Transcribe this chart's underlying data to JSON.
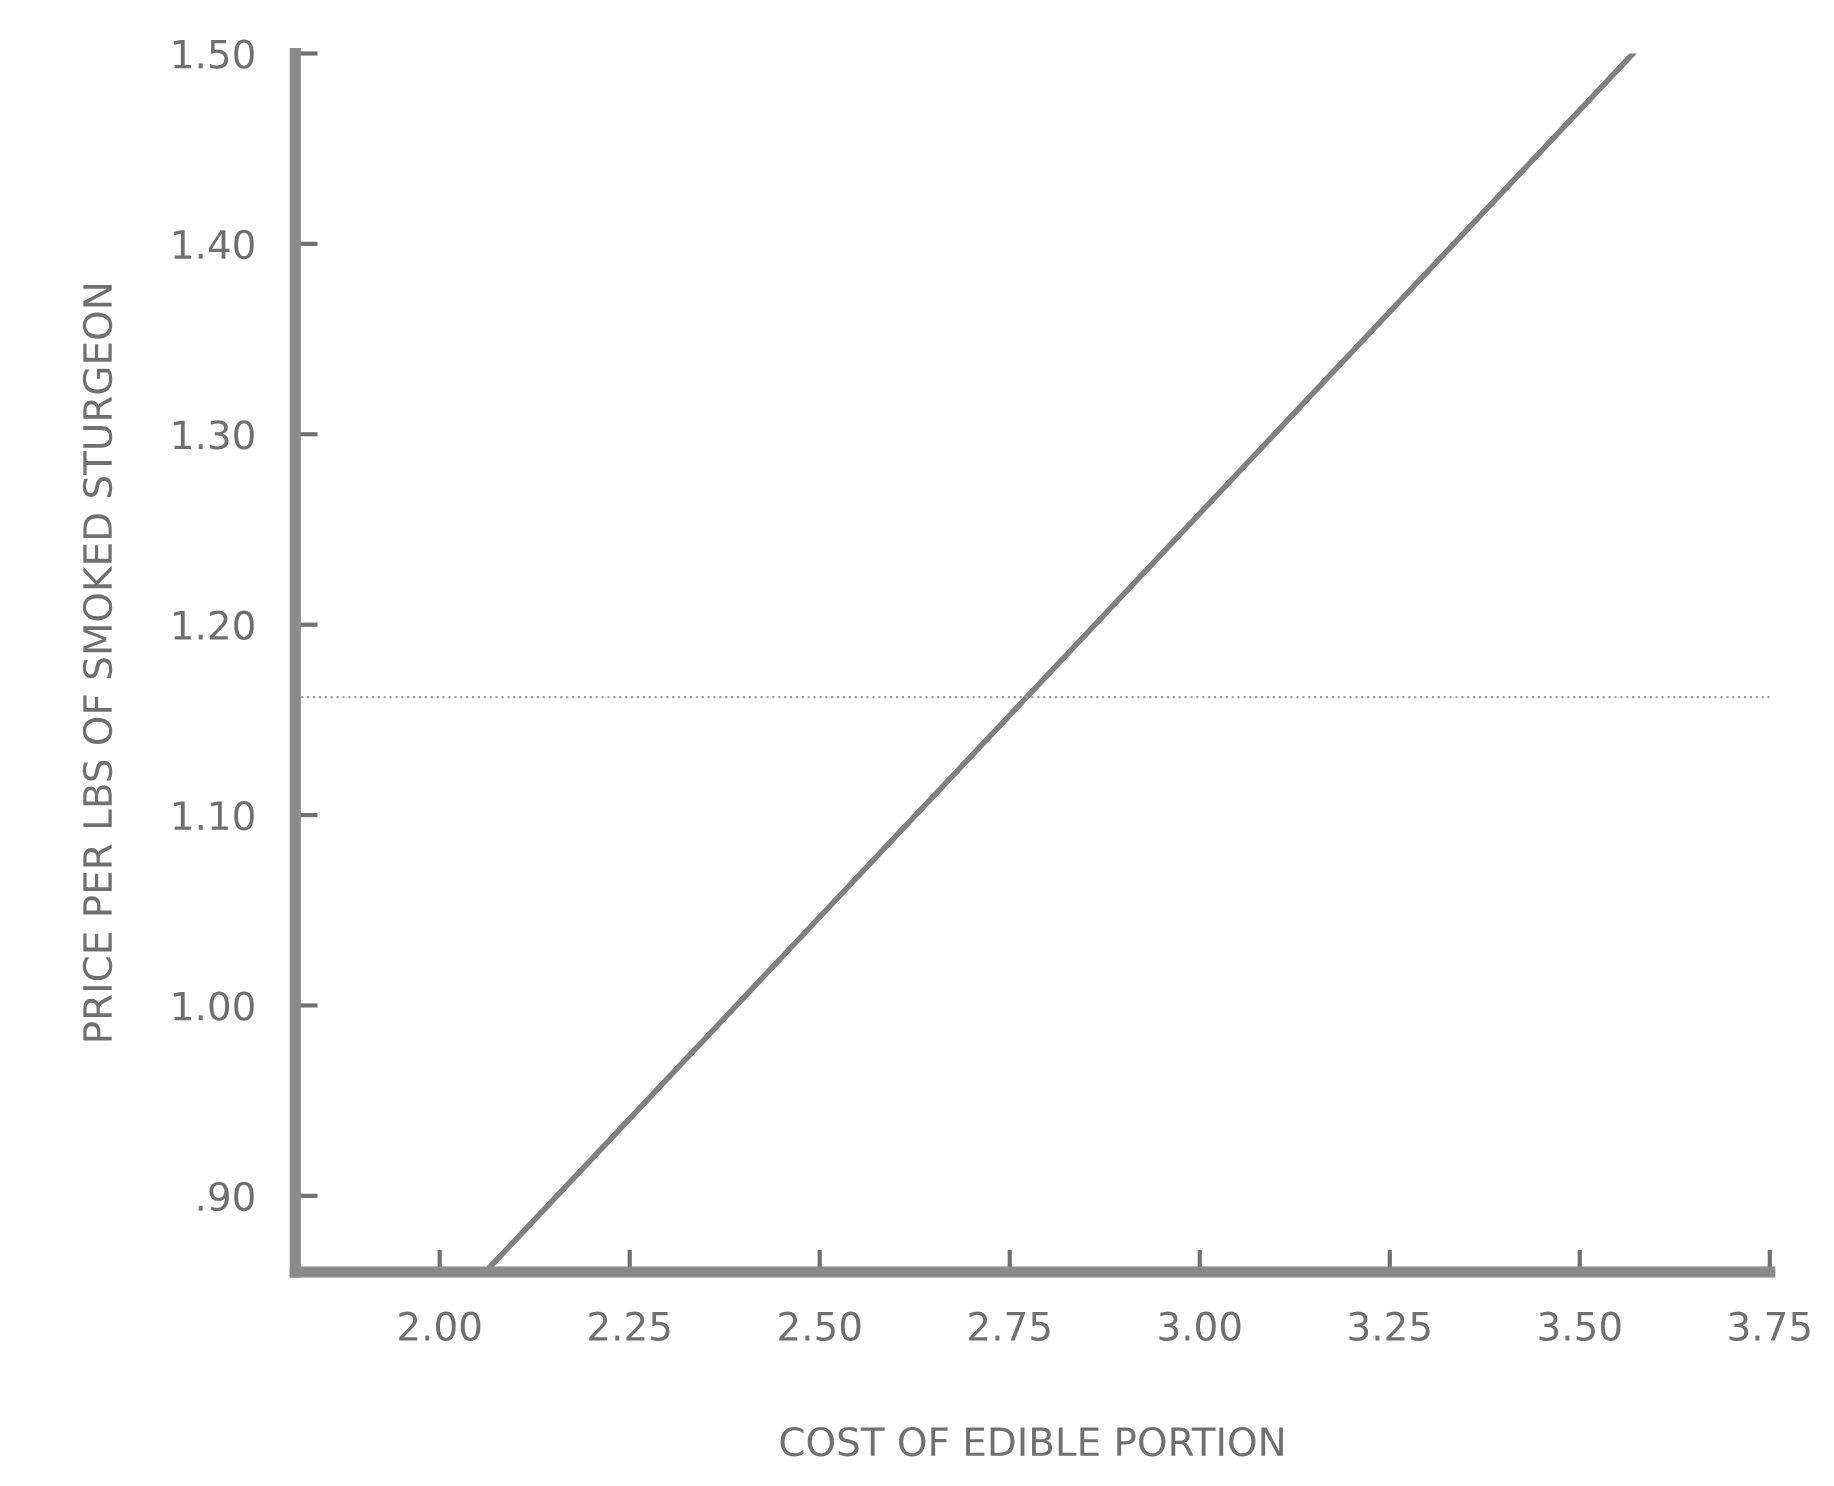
{
  "chart_data": {
    "type": "line",
    "xlabel": "COST OF EDIBLE PORTION",
    "ylabel": "PRICE PER LBS OF SMOKED STURGEON",
    "series": [
      {
        "color": "#808080",
        "x": [
          2.06,
          3.57
        ],
        "values": [
          0.86,
          1.5
        ]
      }
    ],
    "xlim": [
      1.81,
      3.75
    ],
    "ylim": [
      0.86,
      1.5
    ],
    "xticks": [
      {
        "value": 2.0,
        "label": "2.00"
      },
      {
        "value": 2.25,
        "label": "2.25"
      },
      {
        "value": 2.5,
        "label": "2.50"
      },
      {
        "value": 2.75,
        "label": "2.75"
      },
      {
        "value": 3.0,
        "label": "3.00"
      },
      {
        "value": 3.25,
        "label": "3.25"
      },
      {
        "value": 3.5,
        "label": "3.50"
      },
      {
        "value": 3.75,
        "label": "3.75"
      }
    ],
    "yticks": [
      {
        "value": 0.9,
        "label": ".90"
      },
      {
        "value": 1.0,
        "label": "1.00"
      },
      {
        "value": 1.1,
        "label": "1.10"
      },
      {
        "value": 1.2,
        "label": "1.20"
      },
      {
        "value": 1.3,
        "label": "1.30"
      },
      {
        "value": 1.4,
        "label": "1.40"
      },
      {
        "value": 1.5,
        "label": "1.50"
      }
    ],
    "ref_lines": [
      {
        "axis": "y",
        "value": 1.162,
        "color": "#a0a0a0",
        "line_style": "dotted"
      }
    ],
    "grid": false,
    "legend": false,
    "marker": "none",
    "line_style": "solid"
  }
}
